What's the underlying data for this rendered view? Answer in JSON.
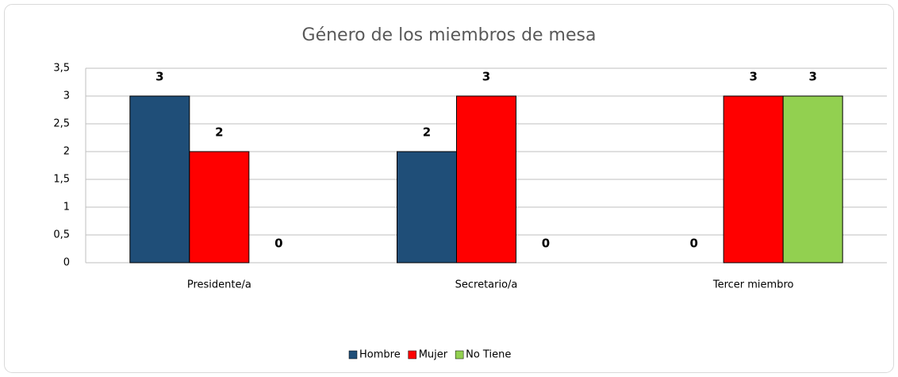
{
  "chart_data": {
    "type": "bar",
    "title": "Género de los miembros de mesa",
    "categories": [
      "Presidente/a",
      "Secretario/a",
      "Tercer miembro"
    ],
    "series": [
      {
        "name": "Hombre",
        "color": "#1F4E78",
        "values": [
          3,
          2,
          0
        ]
      },
      {
        "name": "Mujer",
        "color": "#FF0000",
        "values": [
          2,
          3,
          3
        ]
      },
      {
        "name": "No Tiene",
        "color": "#92D050",
        "values": [
          0,
          0,
          3
        ]
      }
    ],
    "ylim": [
      0,
      3.5
    ],
    "yticks": [
      0,
      {
        "value": 0.5,
        "label": "0,5"
      },
      1,
      {
        "value": 1.5,
        "label": "1,5"
      },
      2,
      {
        "value": 2.5,
        "label": "2,5"
      },
      3,
      {
        "value": 3.5,
        "label": "3,5"
      }
    ],
    "grid": true,
    "legend": "bottom"
  }
}
